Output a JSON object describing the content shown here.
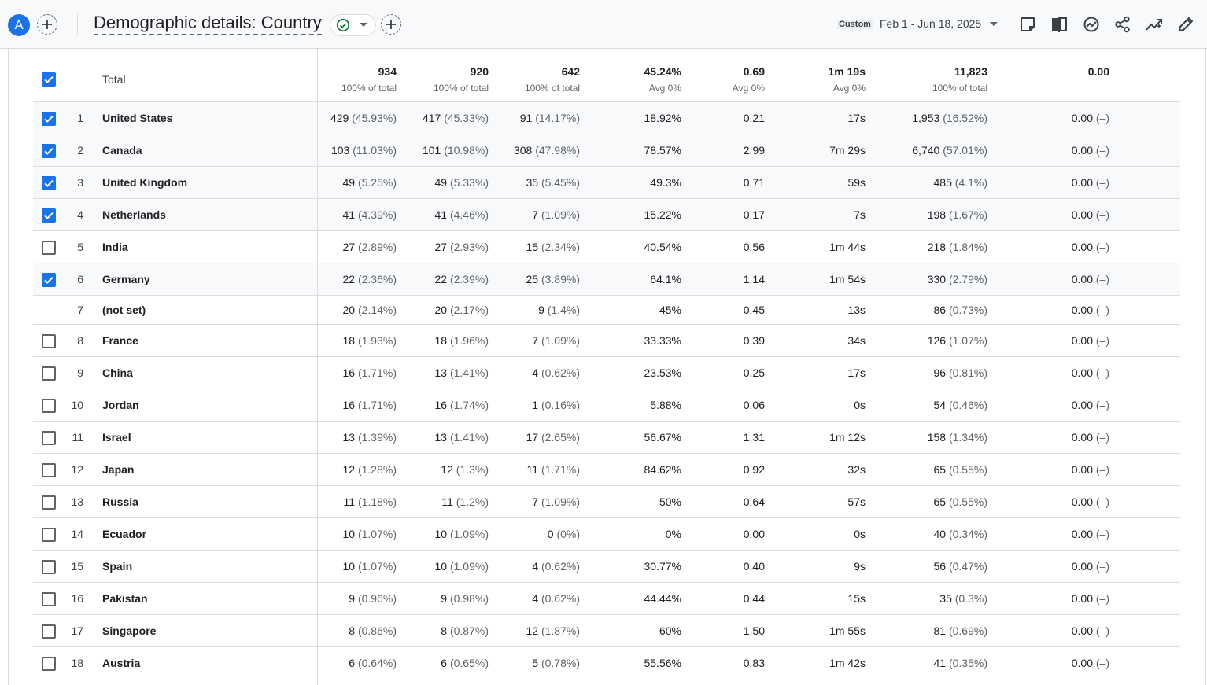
{
  "header": {
    "avatar_letter": "A",
    "title": "Demographic details: Country",
    "date_label": "Custom",
    "date_range": "Feb 1 - Jun 18, 2025",
    "icons": [
      "add-icon",
      "check-circle-icon",
      "chevron-down-icon",
      "add-icon",
      "note-icon",
      "compare-icon",
      "insights-icon",
      "share-icon",
      "trend-icon",
      "edit-icon"
    ]
  },
  "totals": {
    "label": "Total",
    "values": [
      {
        "value": "934",
        "sub": "100% of total"
      },
      {
        "value": "920",
        "sub": "100% of total"
      },
      {
        "value": "642",
        "sub": "100% of total"
      },
      {
        "value": "45.24%",
        "sub": "Avg 0%"
      },
      {
        "value": "0.69",
        "sub": "Avg 0%"
      },
      {
        "value": "1m 19s",
        "sub": "Avg 0%"
      },
      {
        "value": "11,823",
        "sub": "100% of total"
      },
      {
        "value": "0.00",
        "sub": ""
      }
    ]
  },
  "rows": [
    {
      "rank": "1",
      "country": "United States",
      "checked": true,
      "c1": "429",
      "p1": "(45.93%)",
      "c2": "417",
      "p2": "(45.33%)",
      "c3": "91",
      "p3": "(14.17%)",
      "c4": "18.92%",
      "c5": "0.21",
      "c6": "17s",
      "c7": "1,953",
      "p7": "(16.52%)",
      "c8": "0.00",
      "p8": "(–)"
    },
    {
      "rank": "2",
      "country": "Canada",
      "checked": true,
      "c1": "103",
      "p1": "(11.03%)",
      "c2": "101",
      "p2": "(10.98%)",
      "c3": "308",
      "p3": "(47.98%)",
      "c4": "78.57%",
      "c5": "2.99",
      "c6": "7m 29s",
      "c7": "6,740",
      "p7": "(57.01%)",
      "c8": "0.00",
      "p8": "(–)"
    },
    {
      "rank": "3",
      "country": "United Kingdom",
      "checked": true,
      "c1": "49",
      "p1": "(5.25%)",
      "c2": "49",
      "p2": "(5.33%)",
      "c3": "35",
      "p3": "(5.45%)",
      "c4": "49.3%",
      "c5": "0.71",
      "c6": "59s",
      "c7": "485",
      "p7": "(4.1%)",
      "c8": "0.00",
      "p8": "(–)"
    },
    {
      "rank": "4",
      "country": "Netherlands",
      "checked": true,
      "c1": "41",
      "p1": "(4.39%)",
      "c2": "41",
      "p2": "(4.46%)",
      "c3": "7",
      "p3": "(1.09%)",
      "c4": "15.22%",
      "c5": "0.17",
      "c6": "7s",
      "c7": "198",
      "p7": "(1.67%)",
      "c8": "0.00",
      "p8": "(–)"
    },
    {
      "rank": "5",
      "country": "India",
      "checked": false,
      "c1": "27",
      "p1": "(2.89%)",
      "c2": "27",
      "p2": "(2.93%)",
      "c3": "15",
      "p3": "(2.34%)",
      "c4": "40.54%",
      "c5": "0.56",
      "c6": "1m 44s",
      "c7": "218",
      "p7": "(1.84%)",
      "c8": "0.00",
      "p8": "(–)"
    },
    {
      "rank": "6",
      "country": "Germany",
      "checked": true,
      "c1": "22",
      "p1": "(2.36%)",
      "c2": "22",
      "p2": "(2.39%)",
      "c3": "25",
      "p3": "(3.89%)",
      "c4": "64.1%",
      "c5": "1.14",
      "c6": "1m 54s",
      "c7": "330",
      "p7": "(2.79%)",
      "c8": "0.00",
      "p8": "(–)"
    },
    {
      "rank": "7",
      "country": "(not set)",
      "checked": null,
      "c1": "20",
      "p1": "(2.14%)",
      "c2": "20",
      "p2": "(2.17%)",
      "c3": "9",
      "p3": "(1.4%)",
      "c4": "45%",
      "c5": "0.45",
      "c6": "13s",
      "c7": "86",
      "p7": "(0.73%)",
      "c8": "0.00",
      "p8": "(–)"
    },
    {
      "rank": "8",
      "country": "France",
      "checked": false,
      "c1": "18",
      "p1": "(1.93%)",
      "c2": "18",
      "p2": "(1.96%)",
      "c3": "7",
      "p3": "(1.09%)",
      "c4": "33.33%",
      "c5": "0.39",
      "c6": "34s",
      "c7": "126",
      "p7": "(1.07%)",
      "c8": "0.00",
      "p8": "(–)"
    },
    {
      "rank": "9",
      "country": "China",
      "checked": false,
      "c1": "16",
      "p1": "(1.71%)",
      "c2": "13",
      "p2": "(1.41%)",
      "c3": "4",
      "p3": "(0.62%)",
      "c4": "23.53%",
      "c5": "0.25",
      "c6": "17s",
      "c7": "96",
      "p7": "(0.81%)",
      "c8": "0.00",
      "p8": "(–)"
    },
    {
      "rank": "10",
      "country": "Jordan",
      "checked": false,
      "c1": "16",
      "p1": "(1.71%)",
      "c2": "16",
      "p2": "(1.74%)",
      "c3": "1",
      "p3": "(0.16%)",
      "c4": "5.88%",
      "c5": "0.06",
      "c6": "0s",
      "c7": "54",
      "p7": "(0.46%)",
      "c8": "0.00",
      "p8": "(–)"
    },
    {
      "rank": "11",
      "country": "Israel",
      "checked": false,
      "c1": "13",
      "p1": "(1.39%)",
      "c2": "13",
      "p2": "(1.41%)",
      "c3": "17",
      "p3": "(2.65%)",
      "c4": "56.67%",
      "c5": "1.31",
      "c6": "1m 12s",
      "c7": "158",
      "p7": "(1.34%)",
      "c8": "0.00",
      "p8": "(–)"
    },
    {
      "rank": "12",
      "country": "Japan",
      "checked": false,
      "c1": "12",
      "p1": "(1.28%)",
      "c2": "12",
      "p2": "(1.3%)",
      "c3": "11",
      "p3": "(1.71%)",
      "c4": "84.62%",
      "c5": "0.92",
      "c6": "32s",
      "c7": "65",
      "p7": "(0.55%)",
      "c8": "0.00",
      "p8": "(–)"
    },
    {
      "rank": "13",
      "country": "Russia",
      "checked": false,
      "c1": "11",
      "p1": "(1.18%)",
      "c2": "11",
      "p2": "(1.2%)",
      "c3": "7",
      "p3": "(1.09%)",
      "c4": "50%",
      "c5": "0.64",
      "c6": "57s",
      "c7": "65",
      "p7": "(0.55%)",
      "c8": "0.00",
      "p8": "(–)"
    },
    {
      "rank": "14",
      "country": "Ecuador",
      "checked": false,
      "c1": "10",
      "p1": "(1.07%)",
      "c2": "10",
      "p2": "(1.09%)",
      "c3": "0",
      "p3": "(0%)",
      "c4": "0%",
      "c5": "0.00",
      "c6": "0s",
      "c7": "40",
      "p7": "(0.34%)",
      "c8": "0.00",
      "p8": "(–)"
    },
    {
      "rank": "15",
      "country": "Spain",
      "checked": false,
      "c1": "10",
      "p1": "(1.07%)",
      "c2": "10",
      "p2": "(1.09%)",
      "c3": "4",
      "p3": "(0.62%)",
      "c4": "30.77%",
      "c5": "0.40",
      "c6": "9s",
      "c7": "56",
      "p7": "(0.47%)",
      "c8": "0.00",
      "p8": "(–)"
    },
    {
      "rank": "16",
      "country": "Pakistan",
      "checked": false,
      "c1": "9",
      "p1": "(0.96%)",
      "c2": "9",
      "p2": "(0.98%)",
      "c3": "4",
      "p3": "(0.62%)",
      "c4": "44.44%",
      "c5": "0.44",
      "c6": "15s",
      "c7": "35",
      "p7": "(0.3%)",
      "c8": "0.00",
      "p8": "(–)"
    },
    {
      "rank": "17",
      "country": "Singapore",
      "checked": false,
      "c1": "8",
      "p1": "(0.86%)",
      "c2": "8",
      "p2": "(0.87%)",
      "c3": "12",
      "p3": "(1.87%)",
      "c4": "60%",
      "c5": "1.50",
      "c6": "1m 55s",
      "c7": "81",
      "p7": "(0.69%)",
      "c8": "0.00",
      "p8": "(–)"
    },
    {
      "rank": "18",
      "country": "Austria",
      "checked": false,
      "c1": "6",
      "p1": "(0.64%)",
      "c2": "6",
      "p2": "(0.65%)",
      "c3": "5",
      "p3": "(0.78%)",
      "c4": "55.56%",
      "c5": "0.83",
      "c6": "1m 42s",
      "c7": "41",
      "p7": "(0.35%)",
      "c8": "0.00",
      "p8": "(–)"
    }
  ],
  "colors": {
    "accent": "#1a73e8",
    "success": "#188038",
    "border": "#dadce0",
    "muted": "#5f6368"
  }
}
